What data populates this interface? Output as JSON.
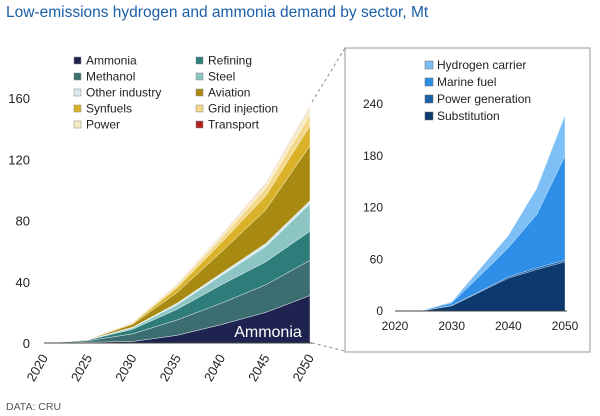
{
  "header": {
    "title": "Low-emissions hydrogen and ammonia demand by sector, Mt"
  },
  "footer": {
    "source": "DATA: CRU"
  },
  "chart_data": [
    {
      "id": "main",
      "type": "area",
      "stacked": true,
      "title": "Low-emissions hydrogen and ammonia demand by sector, Mt",
      "x": [
        2020,
        2025,
        2030,
        2035,
        2040,
        2045,
        2050
      ],
      "x_tick_labels": [
        "2020",
        "2025",
        "2030",
        "2035",
        "2040",
        "2045",
        "2050"
      ],
      "ylim": [
        0,
        160
      ],
      "y_ticks": [
        0,
        40,
        80,
        120,
        160
      ],
      "y_tick_labels": [
        "0",
        "40",
        "80",
        "120",
        "160"
      ],
      "annotation": "Ammonia",
      "series": [
        {
          "name": "Ammonia",
          "color": "#1f2350",
          "values": [
            0,
            0.5,
            1,
            5,
            12,
            20,
            31
          ]
        },
        {
          "name": "Methanol",
          "color": "#3c6e71",
          "values": [
            0,
            1,
            5,
            10,
            14,
            18,
            23
          ]
        },
        {
          "name": "Refining",
          "color": "#2e7d7a",
          "values": [
            0,
            0.5,
            3,
            7,
            12,
            15,
            19
          ]
        },
        {
          "name": "Steel",
          "color": "#8cc5c4",
          "values": [
            0,
            0.2,
            1,
            3,
            6,
            10,
            18
          ]
        },
        {
          "name": "Other industry",
          "color": "#d7eaf0",
          "values": [
            0,
            0,
            0.3,
            1,
            1.5,
            2,
            2
          ]
        },
        {
          "name": "Aviation",
          "color": "#a88a12",
          "values": [
            0,
            0.2,
            2,
            7,
            14,
            22,
            36
          ]
        },
        {
          "name": "Synfuels",
          "color": "#d9b22a",
          "values": [
            0,
            0.1,
            0.6,
            3,
            6,
            9,
            13
          ]
        },
        {
          "name": "Grid injection",
          "color": "#f2d888",
          "values": [
            0,
            0.1,
            0.4,
            1.5,
            3,
            5,
            7
          ]
        },
        {
          "name": "Power",
          "color": "#f7ebc6",
          "values": [
            0,
            0,
            0.3,
            1,
            2,
            3,
            5
          ]
        },
        {
          "name": "Transport",
          "color": "#b02020",
          "values": [
            0,
            0,
            0.1,
            0.2,
            0.3,
            0.4,
            0.5
          ]
        }
      ],
      "legend": {
        "placement": "top-left",
        "columns": [
          [
            "Ammonia",
            "Methanol",
            "Other industry",
            "Synfuels",
            "Power"
          ],
          [
            "Refining",
            "Steel",
            "Aviation",
            "Grid injection",
            "Transport"
          ]
        ]
      }
    },
    {
      "id": "inset",
      "type": "area",
      "stacked": true,
      "x": [
        2020,
        2025,
        2030,
        2035,
        2040,
        2045,
        2050
      ],
      "x_ticks": [
        2020,
        2030,
        2040,
        2050
      ],
      "x_tick_labels": [
        "2020",
        "2030",
        "2040",
        "2050"
      ],
      "ylim": [
        0,
        240
      ],
      "y_ticks": [
        0,
        60,
        120,
        180,
        240
      ],
      "y_tick_labels": [
        "0",
        "60",
        "120",
        "180",
        "240"
      ],
      "series": [
        {
          "name": "Substitution",
          "color": "#0d3a6e",
          "values": [
            0,
            0.5,
            6,
            22,
            38,
            48,
            57
          ]
        },
        {
          "name": "Power generation",
          "color": "#1b5fa8",
          "values": [
            0,
            0,
            0.5,
            1,
            1.5,
            2,
            2
          ]
        },
        {
          "name": "Marine fuel",
          "color": "#2f8ee8",
          "values": [
            0,
            0.5,
            3,
            18,
            34,
            62,
            121
          ]
        },
        {
          "name": "Hydrogen carrier",
          "color": "#7ec0f5",
          "values": [
            0,
            0.2,
            1,
            8,
            14,
            30,
            47
          ]
        }
      ],
      "legend": {
        "placement": "top-left",
        "order": [
          "Hydrogen carrier",
          "Marine fuel",
          "Power generation",
          "Substitution"
        ]
      }
    }
  ]
}
